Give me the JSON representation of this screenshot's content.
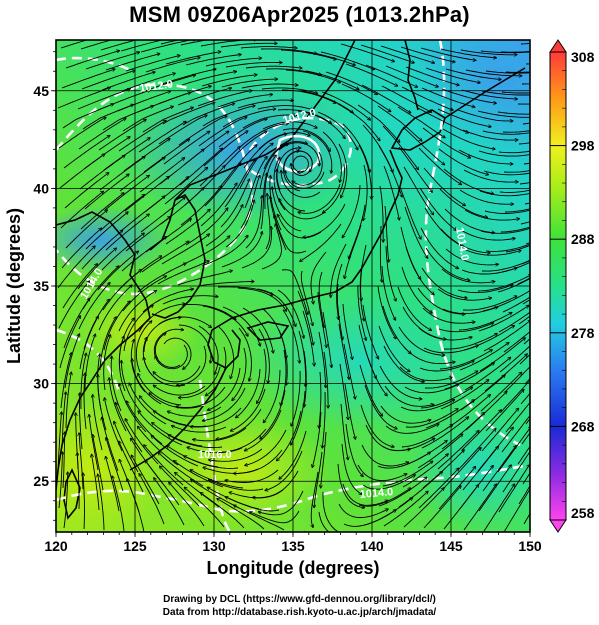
{
  "title": "MSM 09Z06Apr2025 (1013.2hPa)",
  "map": {
    "xlabel": "Longitude (degrees)",
    "ylabel": "Latitude  (degrees)",
    "xlim": [
      120,
      150
    ],
    "ylim": [
      22.4,
      47.6
    ],
    "xticks": [
      120,
      125,
      130,
      135,
      140,
      145,
      150
    ],
    "yticks": [
      25,
      30,
      35,
      40,
      45
    ],
    "grid": true,
    "grid_color": "#000000",
    "field": "shaded temperature with streamlines and white pressure contours",
    "contour_labels": [
      "1012.0",
      "1012.0",
      "1014.0",
      "1014.0",
      "1016.0",
      "1014.0"
    ],
    "contour_color": "#ffffff",
    "streamline_color": "#000000"
  },
  "colorbar": {
    "min": 258,
    "max": 308,
    "ticks": [
      268,
      278,
      288,
      298
    ],
    "end_labels": [
      "258",
      "308"
    ],
    "low_color": "#ff44ee",
    "high_color": "#ff3a3a"
  },
  "credits": {
    "line1": "Drawing by DCL (https://www.gfd-dennou.org/library/dcl/)",
    "line2": "Data from http://database.rish.kyoto-u.ac.jp/arch/jmadata/"
  }
}
